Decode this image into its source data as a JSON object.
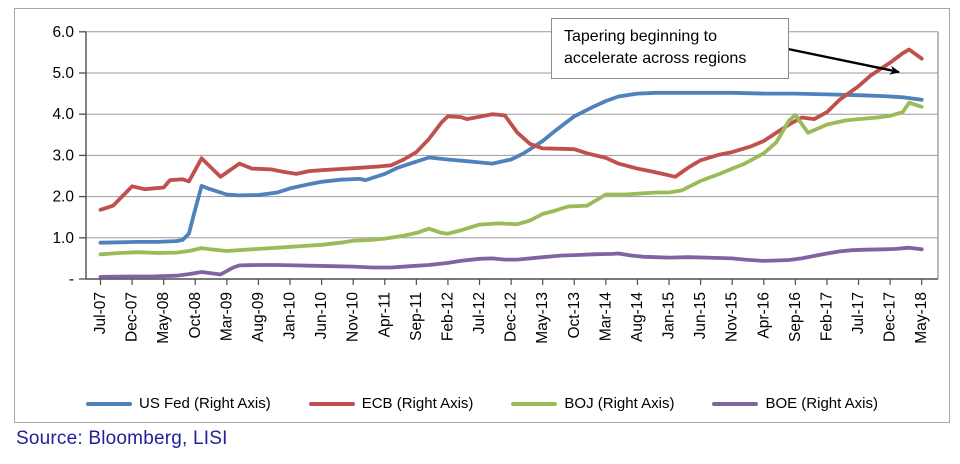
{
  "source": "Source: Bloomberg, LISI",
  "colors": {
    "us_fed": "#4F81BD",
    "ecb": "#C0504D",
    "boj": "#9BBB59",
    "boe": "#8064A2",
    "gridline": "#9a9a9a",
    "axis": "#4d4d4d",
    "frame_border": "#a8a8a8",
    "annotation_border": "#8c8c8c",
    "source_text": "#21219c",
    "arrow": "#000000"
  },
  "annotation": {
    "text": "Tapering beginning to accelerate across regions",
    "arrow_points_to": "ECB line peak near May-18"
  },
  "chart_data": {
    "type": "line",
    "title": "",
    "xlabel": "",
    "ylabel": "",
    "x_unit": "months since Jul-2007 (0 = Jul-07, 130 = May-18)",
    "ylim": [
      0,
      6
    ],
    "grid": true,
    "legend_position": "bottom",
    "x_tick_labels": [
      "Jul-07",
      "Dec-07",
      "May-08",
      "Oct-08",
      "Mar-09",
      "Aug-09",
      "Jan-10",
      "Jun-10",
      "Nov-10",
      "Apr-11",
      "Sep-11",
      "Feb-12",
      "Jul-12",
      "Dec-12",
      "May-13",
      "Oct-13",
      "Mar-14",
      "Aug-14",
      "Jan-15",
      "Jun-15",
      "Nov-15",
      "Apr-16",
      "Sep-16",
      "Feb-17",
      "Jul-17",
      "Dec-17",
      "May-18"
    ],
    "x_tick_month_step": 5,
    "y_tick_labels": [
      "6.0",
      "5.0",
      "4.0",
      "3.0",
      "2.0",
      "1.0",
      "-"
    ],
    "series": [
      {
        "name": "US Fed (Right Axis)",
        "color": "#4F81BD",
        "points": [
          [
            0,
            0.88
          ],
          [
            3,
            0.89
          ],
          [
            6,
            0.9
          ],
          [
            9,
            0.9
          ],
          [
            12,
            0.92
          ],
          [
            13,
            0.95
          ],
          [
            14,
            1.1
          ],
          [
            15,
            1.7
          ],
          [
            16,
            2.26
          ],
          [
            17,
            2.2
          ],
          [
            18,
            2.15
          ],
          [
            20,
            2.05
          ],
          [
            22,
            2.03
          ],
          [
            25,
            2.04
          ],
          [
            28,
            2.1
          ],
          [
            30,
            2.2
          ],
          [
            33,
            2.3
          ],
          [
            35,
            2.36
          ],
          [
            38,
            2.41
          ],
          [
            41,
            2.43
          ],
          [
            42,
            2.4
          ],
          [
            45,
            2.55
          ],
          [
            47,
            2.7
          ],
          [
            50,
            2.85
          ],
          [
            52,
            2.95
          ],
          [
            55,
            2.9
          ],
          [
            58,
            2.86
          ],
          [
            60,
            2.83
          ],
          [
            62,
            2.8
          ],
          [
            65,
            2.9
          ],
          [
            67,
            3.05
          ],
          [
            70,
            3.35
          ],
          [
            72,
            3.6
          ],
          [
            75,
            3.95
          ],
          [
            78,
            4.18
          ],
          [
            80,
            4.32
          ],
          [
            82,
            4.43
          ],
          [
            85,
            4.5
          ],
          [
            88,
            4.52
          ],
          [
            95,
            4.52
          ],
          [
            100,
            4.52
          ],
          [
            105,
            4.5
          ],
          [
            110,
            4.5
          ],
          [
            115,
            4.48
          ],
          [
            120,
            4.46
          ],
          [
            124,
            4.44
          ],
          [
            127,
            4.41
          ],
          [
            130,
            4.35
          ]
        ]
      },
      {
        "name": "ECB (Right Axis)",
        "color": "#C0504D",
        "points": [
          [
            0,
            1.68
          ],
          [
            2,
            1.78
          ],
          [
            5,
            2.25
          ],
          [
            7,
            2.18
          ],
          [
            10,
            2.22
          ],
          [
            11,
            2.4
          ],
          [
            13,
            2.42
          ],
          [
            14,
            2.37
          ],
          [
            16,
            2.93
          ],
          [
            19,
            2.48
          ],
          [
            22,
            2.8
          ],
          [
            24,
            2.68
          ],
          [
            27,
            2.66
          ],
          [
            29,
            2.6
          ],
          [
            31,
            2.55
          ],
          [
            33,
            2.62
          ],
          [
            35,
            2.64
          ],
          [
            38,
            2.67
          ],
          [
            41,
            2.7
          ],
          [
            44,
            2.73
          ],
          [
            46,
            2.76
          ],
          [
            48,
            2.9
          ],
          [
            50,
            3.08
          ],
          [
            52,
            3.4
          ],
          [
            54,
            3.8
          ],
          [
            55,
            3.95
          ],
          [
            57,
            3.93
          ],
          [
            58,
            3.88
          ],
          [
            60,
            3.94
          ],
          [
            62,
            4.0
          ],
          [
            64,
            3.97
          ],
          [
            66,
            3.55
          ],
          [
            68,
            3.28
          ],
          [
            70,
            3.17
          ],
          [
            73,
            3.16
          ],
          [
            75,
            3.15
          ],
          [
            77,
            3.05
          ],
          [
            80,
            2.94
          ],
          [
            82,
            2.8
          ],
          [
            85,
            2.68
          ],
          [
            87,
            2.62
          ],
          [
            89,
            2.55
          ],
          [
            91,
            2.48
          ],
          [
            93,
            2.7
          ],
          [
            95,
            2.88
          ],
          [
            98,
            3.02
          ],
          [
            100,
            3.08
          ],
          [
            103,
            3.22
          ],
          [
            105,
            3.35
          ],
          [
            107,
            3.55
          ],
          [
            109,
            3.75
          ],
          [
            111,
            3.92
          ],
          [
            113,
            3.88
          ],
          [
            115,
            4.05
          ],
          [
            117,
            4.35
          ],
          [
            120,
            4.68
          ],
          [
            122,
            4.95
          ],
          [
            125,
            5.25
          ],
          [
            127,
            5.48
          ],
          [
            128,
            5.57
          ],
          [
            130,
            5.35
          ]
        ]
      },
      {
        "name": "BOJ (Right Axis)",
        "color": "#9BBB59",
        "points": [
          [
            0,
            0.6
          ],
          [
            3,
            0.63
          ],
          [
            6,
            0.65
          ],
          [
            9,
            0.63
          ],
          [
            12,
            0.64
          ],
          [
            14,
            0.68
          ],
          [
            16,
            0.75
          ],
          [
            18,
            0.71
          ],
          [
            20,
            0.68
          ],
          [
            23,
            0.71
          ],
          [
            26,
            0.74
          ],
          [
            29,
            0.77
          ],
          [
            32,
            0.8
          ],
          [
            35,
            0.83
          ],
          [
            38,
            0.88
          ],
          [
            40,
            0.93
          ],
          [
            43,
            0.95
          ],
          [
            45,
            0.98
          ],
          [
            48,
            1.05
          ],
          [
            50,
            1.12
          ],
          [
            52,
            1.22
          ],
          [
            54,
            1.12
          ],
          [
            55,
            1.1
          ],
          [
            57,
            1.18
          ],
          [
            60,
            1.32
          ],
          [
            63,
            1.35
          ],
          [
            66,
            1.33
          ],
          [
            68,
            1.42
          ],
          [
            70,
            1.58
          ],
          [
            72,
            1.66
          ],
          [
            74,
            1.76
          ],
          [
            77,
            1.78
          ],
          [
            80,
            2.05
          ],
          [
            83,
            2.05
          ],
          [
            85,
            2.07
          ],
          [
            88,
            2.1
          ],
          [
            90,
            2.1
          ],
          [
            92,
            2.15
          ],
          [
            95,
            2.38
          ],
          [
            98,
            2.55
          ],
          [
            100,
            2.68
          ],
          [
            102,
            2.8
          ],
          [
            105,
            3.05
          ],
          [
            107,
            3.32
          ],
          [
            109,
            3.85
          ],
          [
            110,
            3.98
          ],
          [
            112,
            3.55
          ],
          [
            114,
            3.68
          ],
          [
            115,
            3.75
          ],
          [
            118,
            3.85
          ],
          [
            120,
            3.88
          ],
          [
            123,
            3.92
          ],
          [
            125,
            3.96
          ],
          [
            127,
            4.05
          ],
          [
            128,
            4.28
          ],
          [
            130,
            4.18
          ]
        ]
      },
      {
        "name": "BOE (Right Axis)",
        "color": "#8064A2",
        "points": [
          [
            0,
            0.05
          ],
          [
            4,
            0.06
          ],
          [
            8,
            0.06
          ],
          [
            12,
            0.08
          ],
          [
            14,
            0.12
          ],
          [
            16,
            0.17
          ],
          [
            18,
            0.13
          ],
          [
            19,
            0.11
          ],
          [
            21,
            0.28
          ],
          [
            22,
            0.33
          ],
          [
            25,
            0.34
          ],
          [
            28,
            0.34
          ],
          [
            31,
            0.33
          ],
          [
            34,
            0.32
          ],
          [
            37,
            0.31
          ],
          [
            40,
            0.3
          ],
          [
            43,
            0.28
          ],
          [
            46,
            0.28
          ],
          [
            49,
            0.31
          ],
          [
            52,
            0.34
          ],
          [
            55,
            0.39
          ],
          [
            57,
            0.44
          ],
          [
            60,
            0.49
          ],
          [
            62,
            0.5
          ],
          [
            64,
            0.47
          ],
          [
            66,
            0.47
          ],
          [
            68,
            0.5
          ],
          [
            70,
            0.53
          ],
          [
            73,
            0.57
          ],
          [
            75,
            0.58
          ],
          [
            78,
            0.6
          ],
          [
            81,
            0.61
          ],
          [
            82,
            0.62
          ],
          [
            84,
            0.57
          ],
          [
            86,
            0.54
          ],
          [
            88,
            0.53
          ],
          [
            90,
            0.52
          ],
          [
            93,
            0.53
          ],
          [
            96,
            0.52
          ],
          [
            98,
            0.51
          ],
          [
            100,
            0.5
          ],
          [
            102,
            0.47
          ],
          [
            105,
            0.44
          ],
          [
            107,
            0.45
          ],
          [
            109,
            0.46
          ],
          [
            111,
            0.5
          ],
          [
            113,
            0.56
          ],
          [
            115,
            0.62
          ],
          [
            117,
            0.67
          ],
          [
            119,
            0.7
          ],
          [
            121,
            0.71
          ],
          [
            124,
            0.72
          ],
          [
            126,
            0.73
          ],
          [
            128,
            0.76
          ],
          [
            130,
            0.72
          ]
        ]
      }
    ]
  }
}
